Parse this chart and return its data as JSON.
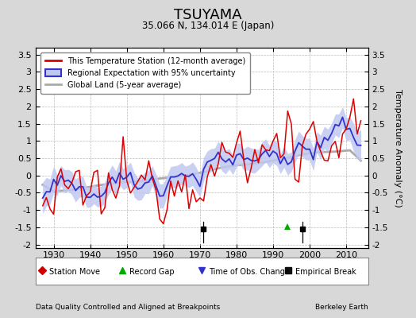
{
  "title": "TSUYAMA",
  "subtitle": "35.066 N, 134.014 E (Japan)",
  "xlabel_left": "Data Quality Controlled and Aligned at Breakpoints",
  "xlabel_right": "Berkeley Earth",
  "ylabel": "Temperature Anomaly (°C)",
  "ylim": [
    -2.1,
    3.7
  ],
  "xlim": [
    1925,
    2016
  ],
  "yticks": [
    -2,
    -1.5,
    -1,
    -0.5,
    0,
    0.5,
    1,
    1.5,
    2,
    2.5,
    3,
    3.5
  ],
  "xticks": [
    1930,
    1940,
    1950,
    1960,
    1970,
    1980,
    1990,
    2000,
    2010
  ],
  "bg_color": "#d8d8d8",
  "plot_bg_color": "#ffffff",
  "grid_color": "#bbbbbb",
  "station_color": "#dd0000",
  "regional_color": "#3333cc",
  "regional_fill_color": "#c0c8f0",
  "global_color": "#aaaaaa",
  "empirical_breaks": [
    1971,
    1998
  ],
  "record_gaps": [
    1994
  ],
  "obs_changes": [],
  "station_moves": [],
  "seed": 12345
}
